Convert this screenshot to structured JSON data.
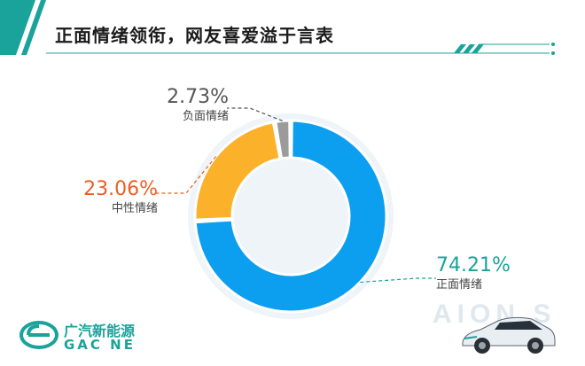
{
  "header": {
    "title": "正面情绪领衔，网友喜爱溢于言表",
    "accent_color": "#1aa39a"
  },
  "chart_data": {
    "type": "pie",
    "variant": "donut",
    "start": "top",
    "slices": [
      {
        "key": "positive",
        "label": "正面情绪",
        "value": 74.21,
        "display": "74.21%",
        "color": "#0c9ff0",
        "label_color": "#1aa39a"
      },
      {
        "key": "neutral",
        "label": "中性情绪",
        "value": 23.06,
        "display": "23.06%",
        "color": "#fbb12a",
        "label_color": "#ef5d22"
      },
      {
        "key": "negative",
        "label": "负面情绪",
        "value": 2.73,
        "display": "2.73%",
        "color": "#9b9b9b",
        "label_color": "#555555"
      }
    ]
  },
  "brand": {
    "logo_cn": "广汽新能源",
    "logo_en": "GAC NE",
    "watermark": "AION S"
  }
}
